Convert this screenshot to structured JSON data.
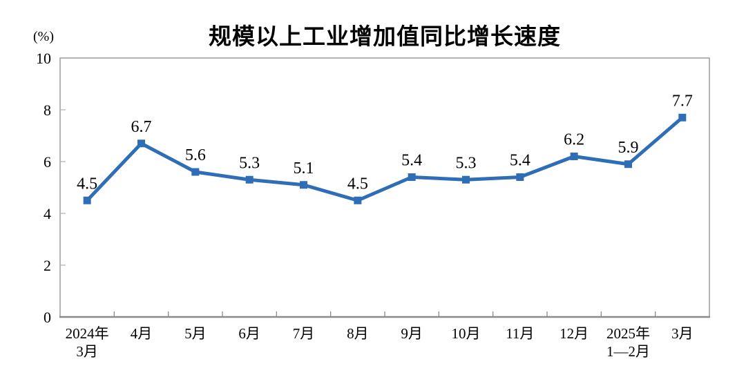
{
  "chart": {
    "title": "规模以上工业增加值同比增长速度",
    "unit_label": "(%)"
  },
  "chart_data": {
    "type": "line",
    "title": "规模以上工业增加值同比增长速度",
    "ylabel": "(%)",
    "categories": [
      [
        "2024年",
        "3月"
      ],
      [
        "4月"
      ],
      [
        "5月"
      ],
      [
        "6月"
      ],
      [
        "7月"
      ],
      [
        "8月"
      ],
      [
        "9月"
      ],
      [
        "10月"
      ],
      [
        "11月"
      ],
      [
        "12月"
      ],
      [
        "2025年",
        "1—2月"
      ],
      [
        "3月"
      ]
    ],
    "values": [
      4.5,
      6.7,
      5.6,
      5.3,
      5.1,
      4.5,
      5.4,
      5.3,
      5.4,
      6.2,
      5.9,
      7.7
    ],
    "ylim": [
      0,
      10
    ],
    "yticks": [
      0,
      2,
      4,
      6,
      8,
      10
    ],
    "grid": false,
    "legend": null,
    "line_color": "#2F6EB7",
    "marker": "square",
    "axis_color": "#9c9c9c",
    "tick_color": "#8a8a8a",
    "inner_tick_color": "#b3b3b3",
    "label_color": "#000000"
  }
}
